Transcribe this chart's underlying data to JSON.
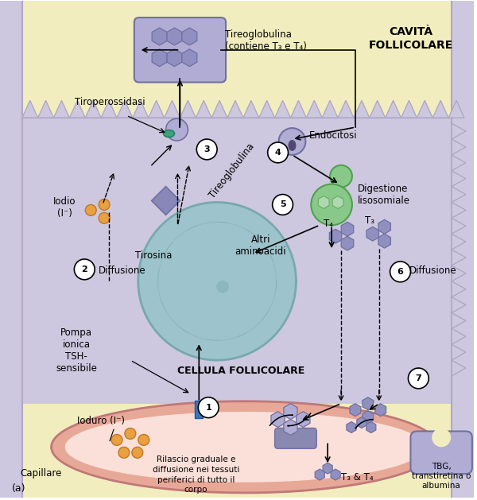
{
  "bg_follicle": "#f2edbe",
  "bg_cell": "#cdc8df",
  "bg_cell_border": "#b0a8c4",
  "bg_cap_outer": "#e8a898",
  "bg_cap_inner": "#fae0d8",
  "nucleus_fill": "#9dc4cc",
  "nucleus_border": "#78a8b0",
  "purple_mol": "#9090c0",
  "purple_mol_dark": "#7070a0",
  "purple_mol_light": "#b0acd4",
  "green_lyso": "#88c888",
  "green_lyso_dark": "#50a050",
  "orange_dot": "#e8a040",
  "orange_dot_dark": "#c07828",
  "teal_enzyme": "#40a080",
  "blue_pump": "#3878c0",
  "title_cavita": "CAVITÀ\nFOLLICOLARE",
  "title_cellula": "CELLULA FOLLICOLARE",
  "lbl_tiroperossidasi": "Tiroperossidasi",
  "lbl_tireoglob_top": "Tireoglobulina\n(contiene T₃ e T₄)",
  "lbl_tireoglob": "Tireoglobulina",
  "lbl_endocitosi": "Endocitosi",
  "lbl_digestione": "Digestione\nlisosomiale",
  "lbl_altri": "Altri\naminoacidi",
  "lbl_tirosina": "Tirosina",
  "lbl_iodio": "Iodio\n(I⁻)",
  "lbl_ioduro": "Ioduro (I⁻)",
  "lbl_diff2": "Diffusione",
  "lbl_diff6": "Diffusione",
  "lbl_pompa": "Pompa\nionica\nTSH-\nsensibile",
  "lbl_capillare": "Capillare",
  "lbl_rilascio": "Rilascio graduale e\ndiffusione nei tessuti\nperiferici di tutto il\ncorpo",
  "lbl_t3t4": "T₃ & T₄",
  "lbl_tbg": "TBG,\ntranstiretina o\nalbumina",
  "lbl_a": "(a)",
  "lbl_T4": "T₄",
  "lbl_T3": "T₃"
}
